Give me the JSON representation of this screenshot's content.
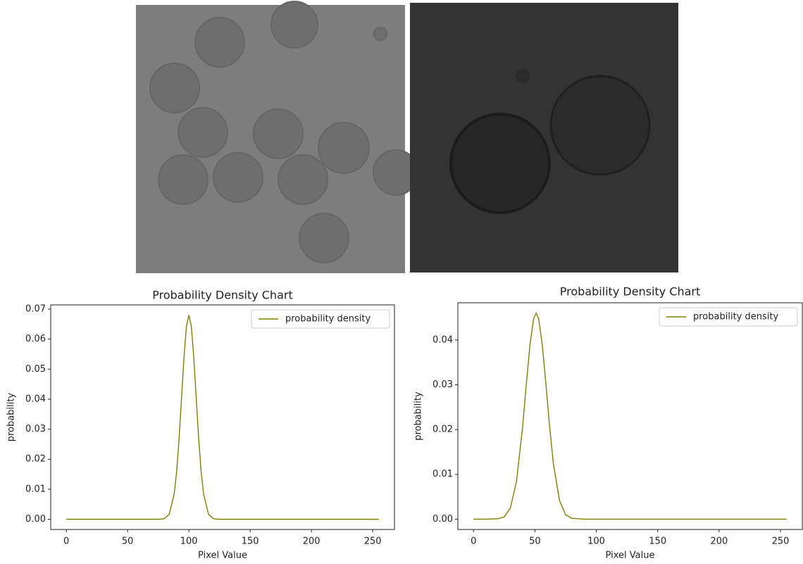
{
  "chart_data": [
    {
      "type": "line",
      "title": "Probability Density Chart",
      "x_label": "Pixel Value",
      "y_label": "probability",
      "x": [
        0,
        60,
        70,
        75,
        80,
        84,
        88,
        90,
        92,
        94,
        96,
        98,
        100,
        102,
        104,
        106,
        108,
        110,
        112,
        116,
        120,
        125,
        130,
        140,
        255
      ],
      "series": [
        {
          "name": "probability density",
          "color": "#808000",
          "values": [
            0,
            0,
            0,
            0,
            0.0002,
            0.0017,
            0.0084,
            0.0159,
            0.0269,
            0.0403,
            0.0539,
            0.0642,
            0.068,
            0.0642,
            0.0539,
            0.0403,
            0.0269,
            0.0159,
            0.0084,
            0.0017,
            0.0002,
            0,
            0,
            0,
            0
          ]
        }
      ],
      "xlim": [
        -12.75,
        267.75
      ],
      "xticks": [
        0,
        50,
        100,
        150,
        200,
        250
      ],
      "ylim": [
        -0.0034,
        0.0714
      ],
      "yticks": [
        {
          "value": 0,
          "label": "0.00"
        },
        0.01,
        0.02,
        0.03,
        0.04,
        0.05,
        0.06,
        0.07
      ],
      "legend": "upper right"
    },
    {
      "type": "line",
      "title": "Probability Density Chart",
      "x_label": "Pixel Value",
      "y_label": "probability",
      "x": [
        0,
        10,
        20,
        25,
        30,
        35,
        40,
        43,
        46,
        49,
        51,
        53,
        56,
        59,
        62,
        65,
        70,
        75,
        80,
        90,
        100,
        255
      ],
      "series": [
        {
          "name": "probability density",
          "color": "#808000",
          "values": [
            0,
            0,
            0.0001,
            0.0005,
            0.0025,
            0.0084,
            0.0206,
            0.0301,
            0.039,
            0.0448,
            0.046,
            0.0448,
            0.039,
            0.0301,
            0.0206,
            0.0125,
            0.0042,
            0.001,
            0.0002,
            0,
            0,
            0
          ]
        }
      ],
      "xlim": [
        -12.75,
        267.75
      ],
      "xticks": [
        0,
        50,
        100,
        150,
        200,
        250
      ],
      "ylim": [
        -0.0023,
        0.0483
      ],
      "yticks": [
        {
          "value": 0,
          "label": "0.00"
        },
        0.01,
        0.02,
        0.03,
        0.04
      ],
      "legend": "upper right"
    }
  ]
}
